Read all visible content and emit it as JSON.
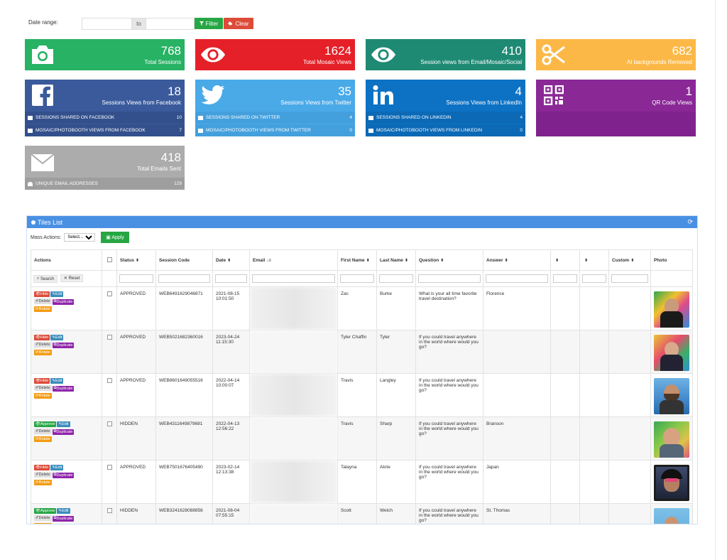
{
  "daterange": {
    "label": "Date range:",
    "to": "to",
    "filter": "Filter",
    "clear": "Clear"
  },
  "cards": {
    "sessions": {
      "value": "768",
      "label": "Total Sessions",
      "color": "#27b264"
    },
    "mosaic": {
      "value": "1624",
      "label": "Total Mosaic Views",
      "color": "#e52028"
    },
    "email_mosaic": {
      "value": "410",
      "label": "Session views from Email/Mosaic/Social",
      "color": "#1f8a74"
    },
    "ai": {
      "value": "682",
      "label": "AI backgrounds Removed",
      "color": "#fcb847"
    },
    "facebook": {
      "value": "18",
      "label": "Sessions Views from Facebook",
      "color": "#3a5a9c",
      "sub1": "SESSIONS SHARED ON FACEBOOK",
      "sub1_v": "10",
      "sub2": "MOSAIC/PHOTOBOOTH VIEWS FROM FACEBOOK",
      "sub2_v": "7"
    },
    "twitter": {
      "value": "35",
      "label": "Sessions Views from Twitter",
      "color": "#4aaae8",
      "sub1": "SESSIONS SHARED ON TWITTER",
      "sub1_v": "4",
      "sub2": "MOSAIC/PHOTOBOOTH VIEWS FROM TWITTER",
      "sub2_v": "0"
    },
    "linkedin": {
      "value": "4",
      "label": "Sessions Views from LinkedIn",
      "color": "#0d72c4",
      "sub1": "SESSIONS SHARED ON LINKEDIN",
      "sub1_v": "4",
      "sub2": "MOSAIC/PHOTOBOOTH VIEWS FROM LINKEDIN",
      "sub2_v": "0"
    },
    "qr": {
      "value": "1",
      "label": "QR Code Views",
      "color": "#8a2896"
    },
    "emails": {
      "value": "418",
      "label": "Total Emails Sent",
      "color": "#acacac",
      "sub1": "UNIQUE EMAIL ADDRESSES",
      "sub1_v": "129"
    }
  },
  "tiles": {
    "title": "Tiles List",
    "mass_label": "Mass Actions:",
    "mass_select": "Select...",
    "apply": "Apply",
    "columns": {
      "actions": "Actions",
      "status": "Status",
      "session": "Session Code",
      "date": "Date",
      "email": "Email",
      "first": "First Name",
      "last": "Last Name",
      "question": "Question",
      "answer": "Answer",
      "custom": "Custom",
      "photo": "Photo"
    },
    "search": "Search",
    "reset": "Reset",
    "btn": {
      "hide": "Hide",
      "edit": "Edit",
      "delete": "Delete",
      "duplicate": "Duplicate",
      "rotate": "Rotate",
      "approve": "Approve"
    },
    "rows": [
      {
        "status": "APPROVED",
        "code": "WEB6491629046871",
        "date": "2021-08-15",
        "time": "10:01:50",
        "first": "Zac",
        "last": "Burke",
        "question": "What is your all time favorite travel destination?",
        "answer": "Florence"
      },
      {
        "status": "APPROVED",
        "code": "WEB5021682360016",
        "date": "2023-04-24",
        "time": "11:15:30",
        "first": "Tyler Chaffin",
        "last": "Tyler",
        "question": "If you could travel anywhere in the world where would you go?",
        "answer": ""
      },
      {
        "status": "APPROVED",
        "code": "WEB8601649055516",
        "date": "2022-04-14",
        "time": "10:00:07",
        "first": "Travis",
        "last": "Langley",
        "question": "If you could travel anywhere in the world where would you go?",
        "answer": ""
      },
      {
        "status": "HIDDEN",
        "code": "WEB4311649879681",
        "date": "2022-04-13",
        "time": "12:56:22",
        "first": "Travis",
        "last": "Sharp",
        "question": "If you could travel anywhere in the world where would you go?",
        "answer": "Branson"
      },
      {
        "status": "APPROVED",
        "code": "WEB7501676405490",
        "date": "2023-02-14",
        "time": "12:13:38",
        "first": "Talayna",
        "last": "Akrie",
        "question": "If you could travel anywhere in the world where would you go?",
        "answer": "Japan"
      },
      {
        "status": "HIDDEN",
        "code": "WEB3241628088856",
        "date": "2021-08-04",
        "time": "07:55:15",
        "first": "Scott",
        "last": "Welch",
        "question": "If you could travel anywhere in the world where would you go?",
        "answer": "St. Thomas"
      }
    ]
  }
}
